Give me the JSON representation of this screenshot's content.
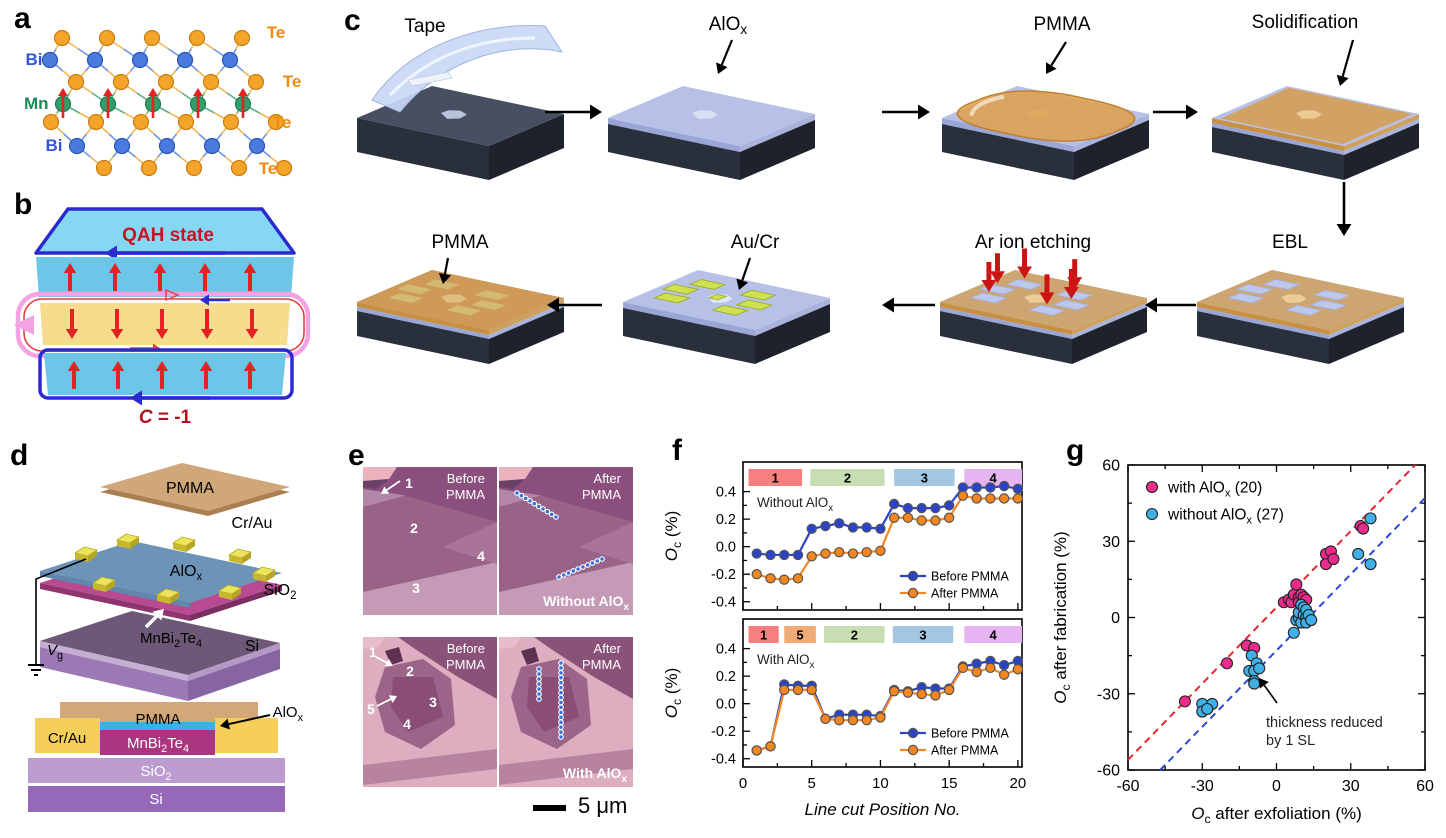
{
  "panels": {
    "a": "a",
    "b": "b",
    "c": "c",
    "d": "d",
    "e": "e",
    "f": "f",
    "g": "g"
  },
  "panel_a": {
    "atom_labels": {
      "te": "Te",
      "bi": "Bi",
      "mn": "Mn"
    },
    "layer_sequence": [
      "Te",
      "Bi",
      "Te",
      "Mn",
      "Te",
      "Bi",
      "Te"
    ],
    "colors": {
      "te": "#f4a428",
      "te_stroke": "#c87d10",
      "bi": "#4a7ade",
      "bi_stroke": "#2a55b0",
      "mn": "#2fa06a",
      "mn_stroke": "#1d7a4d",
      "spin": "#e32222",
      "label_te": "#f08a10",
      "label_bi": "#3355dd",
      "label_mn": "#1d8a55"
    }
  },
  "panel_b": {
    "title": "QAH state",
    "chern_label": "~C~ = -1",
    "colors": {
      "layer_top": "#86d7f2",
      "layer_front": "#6cc6e8",
      "layer_middle": "#f7dc8e",
      "loop_blue": "#2a2ad0",
      "loop_pink": "#f3a2e2",
      "loop_red": "#e34040",
      "spin": "#e32222",
      "title": "#cc1122",
      "chern": "#b01220"
    }
  },
  "panel_c": {
    "stages": [
      "Tape",
      "AlO_{x}",
      "PMMA",
      "Solidification",
      "EBL",
      "Ar ion etching",
      "Au/Cr",
      "PMMA"
    ]
  },
  "panel_d": {
    "labels": {
      "pmma": "PMMA",
      "crau": "Cr/Au",
      "alox": "AlO_{x}",
      "sio2": "SiO_{2}",
      "mbt": "MnBi_{2}Te_{4}",
      "si": "Si",
      "vg": "~V~_{g}"
    },
    "cross_section": {
      "pmma": "PMMA",
      "crau": "Cr/Au",
      "alox": "AlO_{x}",
      "mbt": "MnBi_{2}Te_{4}",
      "sio2": "SiO_{2}",
      "si": "Si"
    }
  },
  "panel_e": {
    "images": [
      {
        "title_line1": "Before",
        "title_line2": "PMMA",
        "numbers": [
          "1",
          "2",
          "3",
          "4"
        ]
      },
      {
        "title_line1": "After",
        "title_line2": "PMMA",
        "caption": "Without AlO_{x}"
      },
      {
        "title_line1": "Before",
        "title_line2": "PMMA",
        "numbers": [
          "1",
          "2",
          "3",
          "4",
          "5"
        ]
      },
      {
        "title_line1": "After",
        "title_line2": "PMMA",
        "caption": "With AlO_{x}"
      }
    ],
    "scale_bar": "5 μm"
  },
  "chart_data": [
    {
      "id": "f-top",
      "type": "line",
      "annotation": "Without AlO_{x}",
      "x": [
        1,
        2,
        3,
        4,
        5,
        6,
        7,
        8,
        9,
        10,
        11,
        12,
        13,
        14,
        15,
        16,
        17,
        18,
        19,
        20
      ],
      "series": [
        {
          "name": "Before PMMA",
          "color": "#2b43c8",
          "values": [
            -0.05,
            -0.06,
            -0.06,
            -0.06,
            0.13,
            0.15,
            0.17,
            0.14,
            0.14,
            0.13,
            0.31,
            0.28,
            0.28,
            0.28,
            0.3,
            0.43,
            0.43,
            0.43,
            0.44,
            0.42
          ]
        },
        {
          "name": "After PMMA",
          "color": "#f5861f",
          "values": [
            -0.2,
            -0.23,
            -0.24,
            -0.23,
            -0.07,
            -0.05,
            -0.04,
            -0.05,
            -0.04,
            -0.03,
            0.21,
            0.21,
            0.19,
            0.19,
            0.21,
            0.37,
            0.35,
            0.35,
            0.35,
            0.35
          ]
        }
      ],
      "bands": [
        {
          "label": "1",
          "x0": 0.4,
          "x1": 4.3,
          "color": "#f5807f"
        },
        {
          "label": "2",
          "x0": 4.9,
          "x1": 10.3,
          "color": "#c7ddb2"
        },
        {
          "label": "3",
          "x0": 11.0,
          "x1": 15.4,
          "color": "#a3c6e3"
        },
        {
          "label": "4",
          "x0": 16.1,
          "x1": 20.3,
          "color": "#e6b4f0"
        }
      ],
      "ylabel": "~O~_{c} (%)",
      "yticks": [
        0.4,
        0.2,
        0.0,
        -0.2,
        -0.4
      ],
      "ylim": [
        -0.46,
        0.615
      ],
      "xlim": [
        0,
        20.3
      ],
      "legend": [
        "Before PMMA",
        "After PMMA"
      ]
    },
    {
      "id": "f-bottom",
      "type": "line",
      "annotation": "With AlO_{x}",
      "x": [
        1,
        2,
        3,
        4,
        5,
        6,
        7,
        8,
        9,
        10,
        11,
        12,
        13,
        14,
        15,
        16,
        17,
        18,
        19,
        20
      ],
      "series": [
        {
          "name": "Before PMMA",
          "color": "#2b43c8",
          "values": [
            -0.34,
            -0.31,
            0.14,
            0.13,
            0.13,
            -0.11,
            -0.08,
            -0.08,
            -0.08,
            -0.09,
            0.1,
            0.09,
            0.12,
            0.11,
            0.11,
            0.27,
            0.29,
            0.31,
            0.28,
            0.31
          ]
        },
        {
          "name": "After PMMA",
          "color": "#f5861f",
          "values": [
            -0.34,
            -0.31,
            0.1,
            0.1,
            0.1,
            -0.11,
            -0.12,
            -0.12,
            -0.12,
            -0.1,
            0.09,
            0.08,
            0.07,
            0.06,
            0.1,
            0.26,
            0.23,
            0.26,
            0.21,
            0.25
          ]
        }
      ],
      "bands": [
        {
          "label": "1",
          "x0": 0.4,
          "x1": 2.6,
          "color": "#f5807f"
        },
        {
          "label": "5",
          "x0": 3.0,
          "x1": 5.3,
          "color": "#f0ab77"
        },
        {
          "label": "2",
          "x0": 5.9,
          "x1": 10.3,
          "color": "#c7ddb2"
        },
        {
          "label": "3",
          "x0": 10.9,
          "x1": 15.3,
          "color": "#a3c6e3"
        },
        {
          "label": "4",
          "x0": 16.1,
          "x1": 20.3,
          "color": "#e6b4f0"
        }
      ],
      "xlabel": "Line cut Position No.",
      "xticks": [
        0,
        5,
        10,
        15,
        20
      ],
      "ylabel": "~O~_{c} (%)",
      "yticks": [
        0.4,
        0.2,
        0.0,
        -0.2,
        -0.4
      ],
      "ylim": [
        -0.46,
        0.615
      ],
      "xlim": [
        0,
        20.3
      ],
      "legend": [
        "Before PMMA",
        "After PMMA"
      ]
    },
    {
      "id": "g",
      "type": "scatter",
      "xlabel": "~O~_{c} after exfoliation (%)",
      "ylabel": "~O~_{c} after fabrication (%)",
      "xlim": [
        -60,
        60
      ],
      "ylim": [
        -60,
        60
      ],
      "xticks": [
        -60,
        -30,
        0,
        30,
        60
      ],
      "yticks": [
        -60,
        -30,
        0,
        30,
        60
      ],
      "series": [
        {
          "name": "with AlO_{x} (20)",
          "color": "#ee2a8d",
          "points": [
            [
              -37,
              -33
            ],
            [
              -20,
              -18
            ],
            [
              -12,
              -11
            ],
            [
              -9,
              -12
            ],
            [
              3,
              6
            ],
            [
              5,
              7
            ],
            [
              6,
              6
            ],
            [
              7,
              9
            ],
            [
              9,
              8
            ],
            [
              9,
              6
            ],
            [
              10,
              9
            ],
            [
              11,
              8
            ],
            [
              12,
              7
            ],
            [
              8,
              13
            ],
            [
              20,
              25
            ],
            [
              22,
              26
            ],
            [
              20,
              21
            ],
            [
              23,
              23
            ],
            [
              34,
              36
            ],
            [
              35,
              35
            ]
          ]
        },
        {
          "name": "without AlO_{x} (27)",
          "color": "#3fb0e8",
          "points": [
            [
              -30,
              -34
            ],
            [
              -26,
              -34
            ],
            [
              -30,
              -37
            ],
            [
              -28,
              -36
            ],
            [
              -10,
              -15
            ],
            [
              -8,
              -18
            ],
            [
              -11,
              -21
            ],
            [
              -9,
              -21
            ],
            [
              -9,
              -25
            ],
            [
              -9,
              -26
            ],
            [
              -7,
              -20
            ],
            [
              7,
              -6
            ],
            [
              8,
              -1
            ],
            [
              9,
              0
            ],
            [
              9,
              2
            ],
            [
              10,
              -2
            ],
            [
              10,
              5
            ],
            [
              11,
              1
            ],
            [
              11,
              4
            ],
            [
              12,
              0
            ],
            [
              12,
              -2
            ],
            [
              12,
              3
            ],
            [
              13,
              1
            ],
            [
              14,
              -1
            ],
            [
              33,
              25
            ],
            [
              38,
              21
            ],
            [
              38,
              39
            ]
          ]
        }
      ],
      "ref_lines": [
        {
          "color": "#e8252c",
          "from": [
            -60,
            -56
          ],
          "to": [
            56,
            60
          ],
          "dashed": true
        },
        {
          "color": "#2b48d8",
          "from": [
            -47,
            -60
          ],
          "to": [
            60,
            47
          ],
          "dashed": true
        }
      ],
      "annotation": {
        "line1": "thickness reduced",
        "line2": "by 1 SL"
      }
    }
  ]
}
